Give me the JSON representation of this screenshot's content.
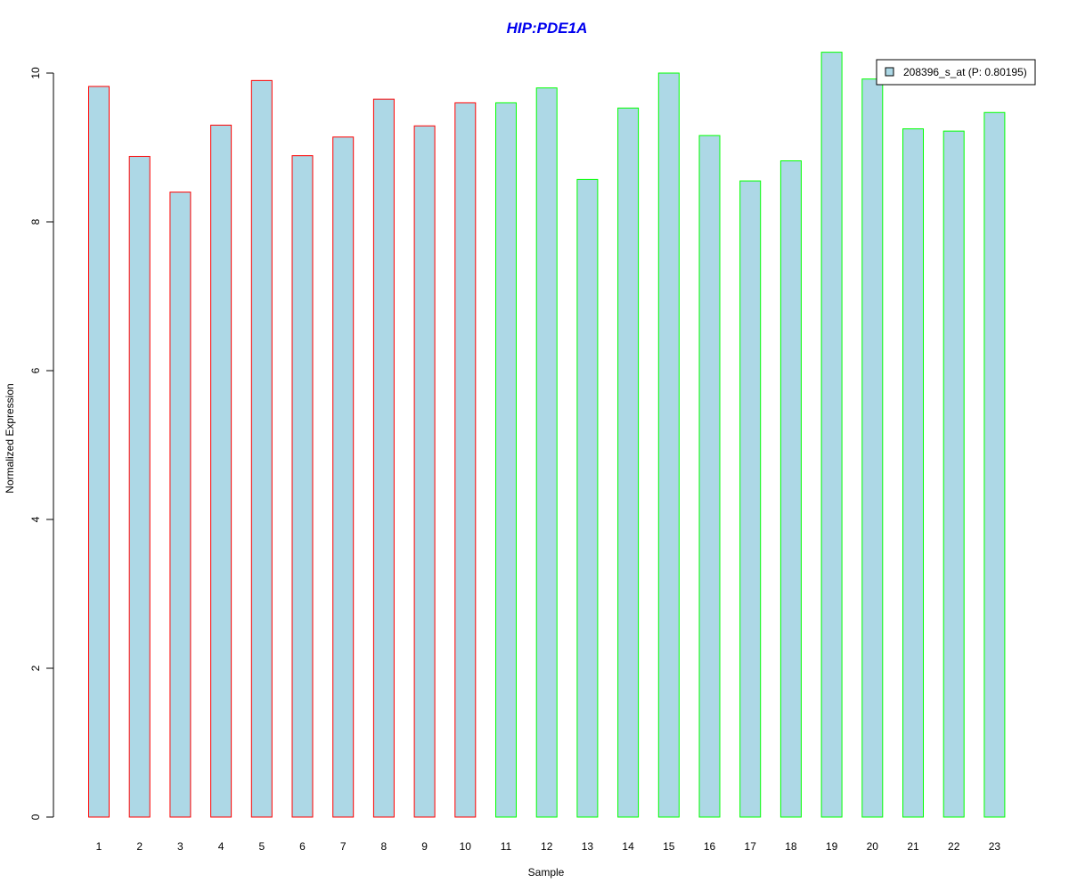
{
  "chart_data": {
    "type": "bar",
    "title": "HIP:PDE1A",
    "xlabel": "Sample",
    "ylabel": "Normalized Expression",
    "ylim": [
      0,
      10
    ],
    "yticks": [
      0,
      2,
      4,
      6,
      8,
      10
    ],
    "categories": [
      "1",
      "2",
      "3",
      "4",
      "5",
      "6",
      "7",
      "8",
      "9",
      "10",
      "11",
      "12",
      "13",
      "14",
      "15",
      "16",
      "17",
      "18",
      "19",
      "20",
      "21",
      "22",
      "23"
    ],
    "series": [
      {
        "name": "208396_s_at (P: 0.80195)",
        "values": [
          9.82,
          8.88,
          8.4,
          9.3,
          9.9,
          8.89,
          9.14,
          9.65,
          9.29,
          9.6,
          9.6,
          9.8,
          8.57,
          9.53,
          10.0,
          9.16,
          8.55,
          8.82,
          10.28,
          9.92,
          9.25,
          9.22,
          9.47
        ]
      }
    ],
    "bar_fill": "#add8e6",
    "group_border_colors": [
      "#ff0000",
      "#ff0000",
      "#ff0000",
      "#ff0000",
      "#ff0000",
      "#ff0000",
      "#ff0000",
      "#ff0000",
      "#ff0000",
      "#ff0000",
      "#00ff00",
      "#00ff00",
      "#00ff00",
      "#00ff00",
      "#00ff00",
      "#00ff00",
      "#00ff00",
      "#00ff00",
      "#00ff00",
      "#00ff00",
      "#00ff00",
      "#00ff00",
      "#00ff00"
    ],
    "legend_position": "top-right",
    "grid": false
  }
}
